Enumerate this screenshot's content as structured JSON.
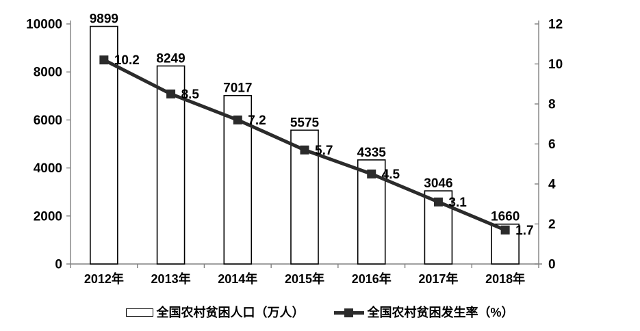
{
  "chart_data": {
    "type": "bar",
    "combo": "bar+line dual axis",
    "title": "",
    "categories": [
      "2012年",
      "2013年",
      "2014年",
      "2015年",
      "2016年",
      "2017年",
      "2018年"
    ],
    "series": [
      {
        "name": "全国农村贫困人口（万人）",
        "type": "bar",
        "axis": "left",
        "values": [
          9899,
          8249,
          7017,
          5575,
          4335,
          3046,
          1660
        ]
      },
      {
        "name": "全国农村贫困发生率（%）",
        "type": "line",
        "axis": "right",
        "values": [
          10.2,
          8.5,
          7.2,
          5.7,
          4.5,
          3.1,
          1.7
        ]
      }
    ],
    "left_axis": {
      "min": 0,
      "max": 10000,
      "ticks": [
        0,
        2000,
        4000,
        6000,
        8000,
        10000
      ]
    },
    "right_axis": {
      "min": 0,
      "max": 12,
      "ticks": [
        0,
        2,
        4,
        6,
        8,
        10,
        12
      ]
    },
    "grid": false,
    "data_labels": true,
    "legend_position": "bottom"
  },
  "legend": {
    "items": [
      {
        "label": "全国农村贫困人口（万人）",
        "swatch": "bar-outline"
      },
      {
        "label": "全国农村贫困发生率（%）",
        "swatch": "line-with-square-marker"
      }
    ]
  },
  "colors": {
    "background": "#ffffff",
    "axis": "#808080",
    "text": "#000000",
    "bar_fill": "#ffffff",
    "bar_border": "#000000",
    "line": "#2b2b2b",
    "marker": "#2b2b2b"
  }
}
